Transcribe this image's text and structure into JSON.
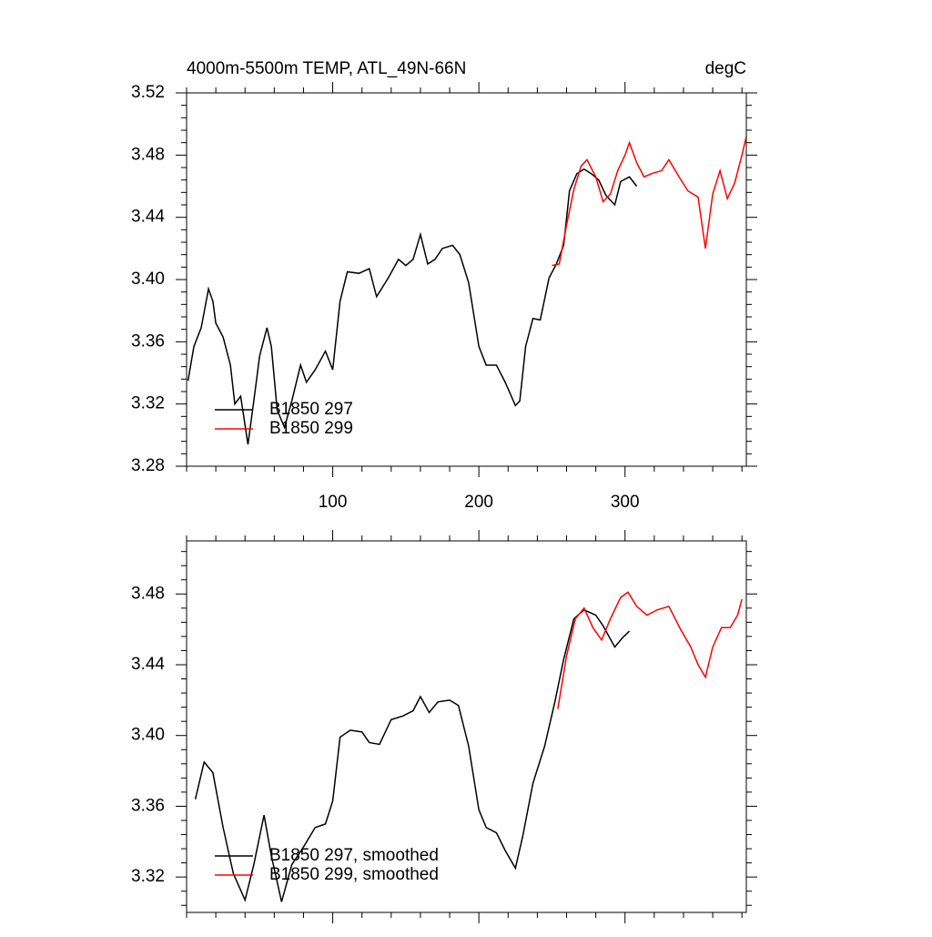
{
  "chart_data": [
    {
      "type": "line",
      "title": "4000m-5500m TEMP, ATL_49N-66N",
      "units": "degC",
      "xlim": [
        0,
        383
      ],
      "xticks": [
        100,
        200,
        300
      ],
      "xtick_labels": true,
      "ylim": [
        3.28,
        3.52
      ],
      "yticks": [
        3.28,
        3.32,
        3.36,
        {
          "value": 3.4,
          "label": "3.40"
        },
        3.44,
        3.48,
        3.52
      ],
      "legend": "lower left",
      "series": [
        {
          "name": "B1850 297",
          "color": "#000000",
          "x": [
            1,
            5,
            10,
            15,
            18,
            20,
            25,
            30,
            33,
            37,
            42,
            46,
            50,
            55,
            58,
            62,
            67,
            72,
            78,
            82,
            88,
            95,
            100,
            105,
            110,
            118,
            125,
            130,
            138,
            145,
            150,
            155,
            160,
            165,
            170,
            175,
            182,
            187,
            193,
            200,
            205,
            212,
            218,
            225,
            228,
            232,
            237,
            242,
            248,
            253,
            258,
            262,
            267,
            272,
            277,
            282,
            287,
            293,
            297,
            303,
            308
          ],
          "values": [
            3.335,
            3.357,
            3.369,
            3.394,
            3.386,
            3.372,
            3.363,
            3.345,
            3.32,
            3.325,
            3.294,
            3.322,
            3.351,
            3.369,
            3.357,
            3.316,
            3.305,
            3.322,
            3.345,
            3.334,
            3.342,
            3.354,
            3.342,
            3.386,
            3.405,
            3.404,
            3.407,
            3.389,
            3.401,
            3.413,
            3.409,
            3.413,
            3.429,
            3.41,
            3.413,
            3.42,
            3.422,
            3.416,
            3.398,
            3.357,
            3.345,
            3.345,
            3.334,
            3.319,
            3.322,
            3.357,
            3.375,
            3.374,
            3.401,
            3.41,
            3.422,
            3.457,
            3.468,
            3.471,
            3.468,
            3.464,
            3.454,
            3.448,
            3.463,
            3.466,
            3.46
          ]
        },
        {
          "name": "B1850 299",
          "color": "#ff0000",
          "x": [
            250,
            255,
            260,
            265,
            270,
            274,
            280,
            285,
            290,
            295,
            300,
            303,
            308,
            313,
            318,
            325,
            330,
            337,
            343,
            350,
            355,
            360,
            365,
            370,
            375,
            380,
            383
          ],
          "values": [
            3.409,
            3.41,
            3.435,
            3.458,
            3.473,
            3.477,
            3.466,
            3.45,
            3.455,
            3.47,
            3.48,
            3.488,
            3.475,
            3.466,
            3.468,
            3.47,
            3.477,
            3.466,
            3.457,
            3.453,
            3.42,
            3.455,
            3.47,
            3.452,
            3.462,
            3.48,
            3.492
          ]
        }
      ]
    },
    {
      "type": "line",
      "xlim": [
        0,
        383
      ],
      "xticks": [
        100,
        200,
        300
      ],
      "xtick_labels": false,
      "ylim": [
        3.3,
        3.51
      ],
      "yticks": [
        3.32,
        3.36,
        {
          "value": 3.4,
          "label": "3.40"
        },
        3.44,
        3.48
      ],
      "legend": "lower left",
      "series": [
        {
          "name": "B1850 297, smoothed",
          "color": "#000000",
          "x": [
            6,
            12,
            18,
            25,
            32,
            40,
            46,
            53,
            58,
            65,
            72,
            80,
            88,
            95,
            100,
            105,
            112,
            120,
            125,
            132,
            140,
            148,
            155,
            160,
            166,
            172,
            180,
            186,
            193,
            200,
            205,
            212,
            218,
            225,
            230,
            237,
            245,
            252,
            258,
            265,
            272,
            280,
            285,
            293,
            298,
            303
          ],
          "values": [
            3.364,
            3.385,
            3.379,
            3.348,
            3.322,
            3.307,
            3.327,
            3.355,
            3.332,
            3.306,
            3.327,
            3.337,
            3.348,
            3.35,
            3.363,
            3.399,
            3.403,
            3.402,
            3.396,
            3.395,
            3.409,
            3.411,
            3.414,
            3.422,
            3.413,
            3.419,
            3.42,
            3.417,
            3.394,
            3.358,
            3.348,
            3.345,
            3.335,
            3.325,
            3.343,
            3.373,
            3.394,
            3.419,
            3.443,
            3.466,
            3.471,
            3.468,
            3.462,
            3.45,
            3.455,
            3.459
          ]
        },
        {
          "name": "B1850 299, smoothed",
          "color": "#ff0000",
          "x": [
            254,
            260,
            266,
            272,
            278,
            284,
            290,
            297,
            302,
            308,
            315,
            322,
            330,
            338,
            345,
            350,
            355,
            360,
            366,
            372,
            377,
            380
          ],
          "values": [
            3.415,
            3.445,
            3.466,
            3.472,
            3.461,
            3.454,
            3.466,
            3.478,
            3.481,
            3.473,
            3.468,
            3.471,
            3.473,
            3.46,
            3.45,
            3.44,
            3.433,
            3.45,
            3.461,
            3.461,
            3.468,
            3.477
          ]
        }
      ]
    }
  ]
}
